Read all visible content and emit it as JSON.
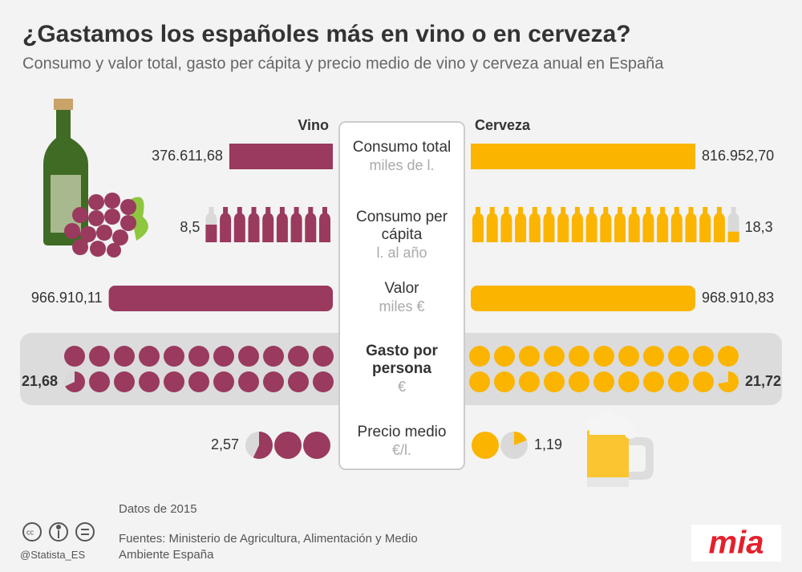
{
  "chart_data": {
    "type": "butterfly",
    "title": "¿Gastamos los españoles más en vino o en cerveza?",
    "subtitle": "Consumo y valor total, gasto per cápita y precio medio de vino y cerveza anual en España",
    "categories": [
      "Consumo total",
      "Consumo per cápita",
      "Valor",
      "Gasto por persona",
      "Precio medio"
    ],
    "units": [
      "miles de l.",
      "l. al año",
      "miles €",
      "€",
      "€/l."
    ],
    "marks": [
      "bar",
      "bottles",
      "bar",
      "dots",
      "dots"
    ],
    "series": [
      {
        "name": "Vino",
        "color": "#993a5e",
        "values": [
          376611.68,
          8.5,
          966910.11,
          21.68,
          2.57
        ],
        "value_labels": [
          "376.611,68",
          "8,5",
          "966.910,11",
          "21,68",
          "2,57"
        ]
      },
      {
        "name": "Cerveza",
        "color": "#fbb400",
        "values": [
          816952.7,
          18.3,
          968910.83,
          21.72,
          1.19
        ],
        "value_labels": [
          "816.952,70",
          "18,3",
          "968.910,83",
          "21,72",
          "1,19"
        ]
      }
    ]
  },
  "footer": {
    "year": "Datos de 2015",
    "sources": "Fuentes: Ministerio de Agricultura, Alimentación y Medio Ambiente España",
    "handle": "@Statista_ES",
    "logo": "mia"
  }
}
